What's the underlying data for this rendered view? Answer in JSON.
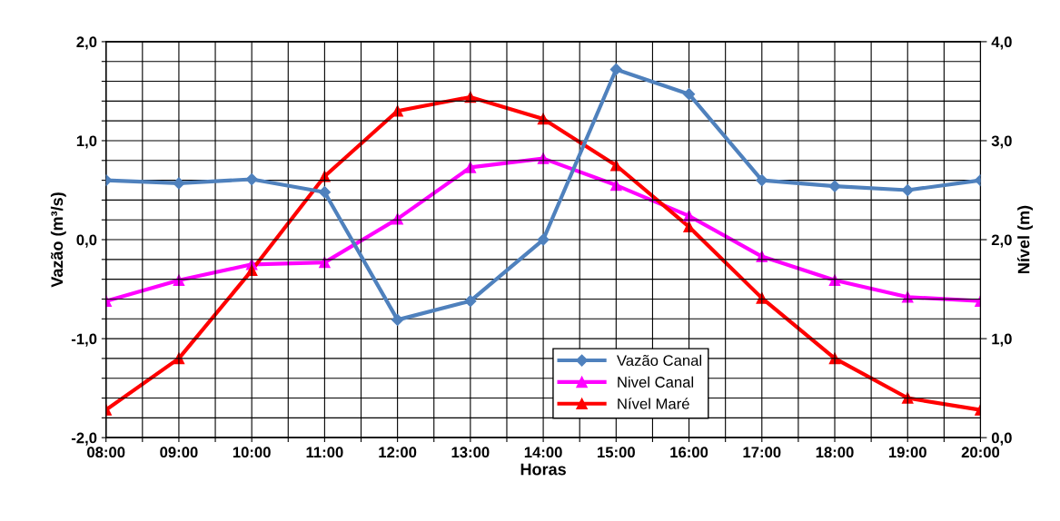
{
  "chart_data": {
    "type": "line",
    "xlabel": "Horas",
    "ylabel": "Vazão (m³/s)",
    "y2label": "Nível (m)",
    "x": [
      8,
      9,
      10,
      11,
      12,
      13,
      14,
      15,
      16,
      17,
      18,
      19,
      20
    ],
    "xlim": [
      8,
      20
    ],
    "xticks": [
      {
        "value": 8,
        "label": "08:00"
      },
      {
        "value": 8.5,
        "label": null
      },
      {
        "value": 9,
        "label": "09:00"
      },
      {
        "value": 9.5,
        "label": null
      },
      {
        "value": 10,
        "label": "10:00"
      },
      {
        "value": 10.5,
        "label": null
      },
      {
        "value": 11,
        "label": "11:00"
      },
      {
        "value": 11.5,
        "label": null
      },
      {
        "value": 12,
        "label": "12:00"
      },
      {
        "value": 12.5,
        "label": null
      },
      {
        "value": 13,
        "label": "13:00"
      },
      {
        "value": 13.5,
        "label": null
      },
      {
        "value": 14,
        "label": "14:00"
      },
      {
        "value": 14.5,
        "label": null
      },
      {
        "value": 15,
        "label": "15:00"
      },
      {
        "value": 15.5,
        "label": null
      },
      {
        "value": 16,
        "label": "16:00"
      },
      {
        "value": 16.5,
        "label": null
      },
      {
        "value": 17,
        "label": "17:00"
      },
      {
        "value": 17.5,
        "label": null
      },
      {
        "value": 18,
        "label": "18:00"
      },
      {
        "value": 18.5,
        "label": null
      },
      {
        "value": 19,
        "label": "19:00"
      },
      {
        "value": 19.5,
        "label": null
      },
      {
        "value": 20,
        "label": "20:00"
      }
    ],
    "ylim": [
      -2,
      2
    ],
    "yticks": [
      {
        "value": -2,
        "label": "-2,0"
      },
      {
        "value": -1.8,
        "label": null
      },
      {
        "value": -1.6,
        "label": null
      },
      {
        "value": -1.4,
        "label": null
      },
      {
        "value": -1.2,
        "label": null
      },
      {
        "value": -1,
        "label": "-1,0"
      },
      {
        "value": -0.8,
        "label": null
      },
      {
        "value": -0.6,
        "label": null
      },
      {
        "value": -0.4,
        "label": null
      },
      {
        "value": -0.2,
        "label": null
      },
      {
        "value": 0,
        "label": "0,0"
      },
      {
        "value": 0.2,
        "label": null
      },
      {
        "value": 0.4,
        "label": null
      },
      {
        "value": 0.6,
        "label": null
      },
      {
        "value": 0.8,
        "label": null
      },
      {
        "value": 1,
        "label": "1,0"
      },
      {
        "value": 1.2,
        "label": null
      },
      {
        "value": 1.4,
        "label": null
      },
      {
        "value": 1.6,
        "label": null
      },
      {
        "value": 1.8,
        "label": null
      },
      {
        "value": 2,
        "label": "2,0"
      }
    ],
    "y2lim": [
      0,
      4
    ],
    "y2ticks": [
      {
        "value": 0,
        "label": "0,0"
      },
      {
        "value": 1,
        "label": "1,0"
      },
      {
        "value": 2,
        "label": "2,0"
      },
      {
        "value": 3,
        "label": "3,0"
      },
      {
        "value": 4,
        "label": "4,0"
      }
    ],
    "grid": true,
    "legend": "bottom",
    "line_style": "solid",
    "series": [
      {
        "name": "Vazão Canal",
        "color": "#4f81bd",
        "marker": "diamond",
        "values": [
          0.6,
          0.57,
          0.61,
          0.48,
          -0.81,
          -0.62,
          0.0,
          1.72,
          1.47,
          0.6,
          0.54,
          0.5,
          0.6
        ]
      },
      {
        "name": "Nivel Canal",
        "color": "#ff00ff",
        "marker": "triangle",
        "axis": "y2",
        "values": [
          1.38,
          1.59,
          1.75,
          1.77,
          2.21,
          2.73,
          2.82,
          2.55,
          2.24,
          1.83,
          1.59,
          1.42,
          1.38
        ]
      },
      {
        "name": "Nível Maré",
        "color": "#ff0000",
        "marker": "triangle",
        "axis": "y2",
        "values": [
          0.28,
          0.8,
          1.69,
          2.64,
          3.3,
          3.44,
          3.22,
          2.75,
          2.13,
          1.41,
          0.8,
          0.4,
          0.28
        ]
      }
    ]
  }
}
